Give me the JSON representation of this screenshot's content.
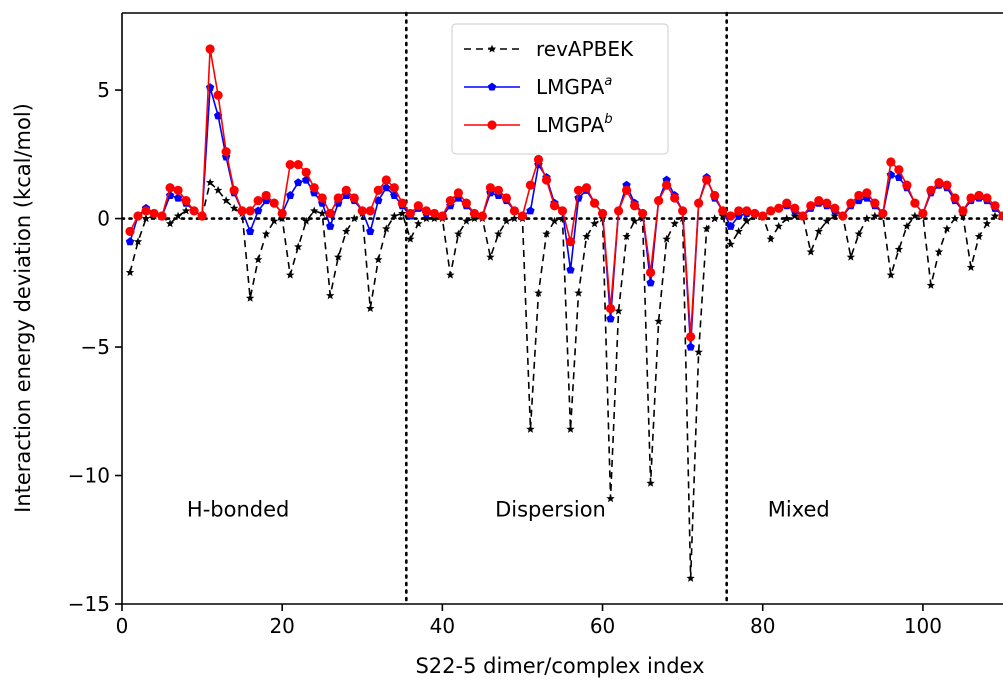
{
  "chart_data": {
    "type": "line",
    "title": "",
    "xlabel": "S22-5 dimer/complex index",
    "ylabel": "Interaction energy deviation (kcal/mol)",
    "xlim": [
      0,
      110
    ],
    "ylim": [
      -15,
      8
    ],
    "x_ticks": [
      0,
      20,
      40,
      60,
      80,
      100
    ],
    "y_ticks": [
      -15,
      -10,
      -5,
      0,
      5
    ],
    "x_tick_labels": [
      "0",
      "20",
      "40",
      "60",
      "80",
      "100"
    ],
    "y_tick_labels": [
      "−15",
      "−10",
      "−5",
      "0",
      "5"
    ],
    "grid": false,
    "legend_position": "top-center",
    "zero_line": {
      "y": 0,
      "style": "dotted",
      "color": "#000000"
    },
    "region_dividers": [
      35.5,
      75.5
    ],
    "region_labels": [
      {
        "text": "H-bonded",
        "x": 14.5,
        "y": -11.6
      },
      {
        "text": "Dispersion",
        "x": 53.5,
        "y": -11.6
      },
      {
        "text": "Mixed",
        "x": 84.5,
        "y": -11.6
      }
    ],
    "series": [
      {
        "name": "revAPBEK",
        "sup": "",
        "color": "#000000",
        "dash": "7,5",
        "marker": "star",
        "x": [
          1,
          2,
          3,
          4,
          5,
          6,
          7,
          8,
          9,
          10,
          11,
          12,
          13,
          14,
          15,
          16,
          17,
          18,
          19,
          20,
          21,
          22,
          23,
          24,
          25,
          26,
          27,
          28,
          29,
          30,
          31,
          32,
          33,
          34,
          35,
          36,
          37,
          38,
          39,
          40,
          41,
          42,
          43,
          44,
          45,
          46,
          47,
          48,
          49,
          50,
          51,
          52,
          53,
          54,
          55,
          56,
          57,
          58,
          59,
          60,
          61,
          62,
          63,
          64,
          65,
          66,
          67,
          68,
          69,
          70,
          71,
          72,
          73,
          74,
          75,
          76,
          77,
          78,
          79,
          80,
          81,
          82,
          83,
          84,
          85,
          86,
          87,
          88,
          89,
          90,
          91,
          92,
          93,
          94,
          95,
          96,
          97,
          98,
          99,
          100,
          101,
          102,
          103,
          104,
          105,
          106,
          107,
          108,
          109,
          110
        ],
        "y": [
          -2.1,
          -0.9,
          0.0,
          0.1,
          0.1,
          -0.2,
          0.1,
          0.3,
          0.3,
          0.1,
          1.4,
          1.1,
          0.7,
          0.4,
          0.2,
          -3.1,
          -1.6,
          -0.6,
          -0.1,
          0.0,
          -2.2,
          -1.1,
          -0.1,
          0.3,
          0.2,
          -3.0,
          -1.5,
          -0.5,
          0.0,
          0.2,
          -3.5,
          -1.6,
          -0.4,
          0.1,
          0.2,
          -0.8,
          -0.2,
          0.0,
          0.0,
          0.0,
          -2.2,
          -0.6,
          -0.1,
          0.0,
          0.0,
          -1.5,
          -0.6,
          -0.1,
          0.0,
          0.0,
          -8.2,
          -2.9,
          -0.6,
          -0.1,
          0.0,
          -8.2,
          -2.9,
          -0.7,
          -0.2,
          0.0,
          -10.9,
          -3.6,
          -0.7,
          -0.1,
          0.0,
          -10.3,
          -4.0,
          -0.8,
          -0.2,
          0.0,
          -14.0,
          -5.2,
          -0.4,
          0.0,
          0.1,
          -1.0,
          -0.5,
          -0.1,
          0.1,
          0.1,
          -0.8,
          -0.3,
          0.0,
          0.1,
          0.1,
          -1.3,
          -0.5,
          -0.1,
          0.1,
          0.1,
          -1.5,
          -0.6,
          0.0,
          0.1,
          0.1,
          -2.2,
          -1.2,
          -0.3,
          0.1,
          0.1,
          -2.6,
          -1.3,
          -0.4,
          0.0,
          0.1,
          -1.9,
          -0.7,
          -0.2,
          0.1,
          0.1
        ]
      },
      {
        "name": "LMGPA",
        "sup": "a",
        "color": "#0000ff",
        "dash": "",
        "marker": "pentagon",
        "x": [
          1,
          2,
          3,
          4,
          5,
          6,
          7,
          8,
          9,
          10,
          11,
          12,
          13,
          14,
          15,
          16,
          17,
          18,
          19,
          20,
          21,
          22,
          23,
          24,
          25,
          26,
          27,
          28,
          29,
          30,
          31,
          32,
          33,
          34,
          35,
          36,
          37,
          38,
          39,
          40,
          41,
          42,
          43,
          44,
          45,
          46,
          47,
          48,
          49,
          50,
          51,
          52,
          53,
          54,
          55,
          56,
          57,
          58,
          59,
          60,
          61,
          62,
          63,
          64,
          65,
          66,
          67,
          68,
          69,
          70,
          71,
          72,
          73,
          74,
          75,
          76,
          77,
          78,
          79,
          80,
          81,
          82,
          83,
          84,
          85,
          86,
          87,
          88,
          89,
          90,
          91,
          92,
          93,
          94,
          95,
          96,
          97,
          98,
          99,
          100,
          101,
          102,
          103,
          104,
          105,
          106,
          107,
          108,
          109,
          110
        ],
        "y": [
          -0.9,
          0.1,
          0.4,
          0.2,
          0.1,
          0.9,
          0.8,
          0.6,
          0.3,
          0.1,
          5.1,
          4.0,
          2.4,
          1.0,
          0.3,
          -0.5,
          0.3,
          0.7,
          0.6,
          0.2,
          0.9,
          1.4,
          1.5,
          1.0,
          0.6,
          -0.3,
          0.6,
          0.9,
          0.7,
          0.3,
          -0.5,
          0.7,
          1.2,
          0.9,
          0.5,
          0.1,
          0.4,
          0.2,
          0.2,
          0.1,
          0.5,
          0.8,
          0.5,
          0.2,
          0.1,
          1.0,
          0.9,
          0.7,
          0.3,
          0.1,
          0.3,
          2.1,
          1.6,
          0.6,
          0.3,
          -2.0,
          0.8,
          1.1,
          0.6,
          0.2,
          -3.9,
          0.3,
          1.3,
          0.6,
          0.2,
          -2.5,
          0.7,
          1.5,
          0.9,
          0.3,
          -5.0,
          0.6,
          1.6,
          0.8,
          0.3,
          -0.3,
          0.1,
          0.2,
          0.2,
          0.1,
          0.3,
          0.4,
          0.5,
          0.3,
          0.1,
          0.4,
          0.6,
          0.5,
          0.3,
          0.1,
          0.5,
          0.7,
          0.8,
          0.5,
          0.2,
          1.7,
          1.6,
          1.2,
          0.6,
          0.2,
          1.0,
          1.3,
          1.2,
          0.7,
          0.3,
          0.7,
          0.8,
          0.7,
          0.4,
          0.1
        ]
      },
      {
        "name": "LMGPA",
        "sup": "b",
        "color": "#ff0000",
        "dash": "",
        "marker": "circle",
        "x": [
          1,
          2,
          3,
          4,
          5,
          6,
          7,
          8,
          9,
          10,
          11,
          12,
          13,
          14,
          15,
          16,
          17,
          18,
          19,
          20,
          21,
          22,
          23,
          24,
          25,
          26,
          27,
          28,
          29,
          30,
          31,
          32,
          33,
          34,
          35,
          36,
          37,
          38,
          39,
          40,
          41,
          42,
          43,
          44,
          45,
          46,
          47,
          48,
          49,
          50,
          51,
          52,
          53,
          54,
          55,
          56,
          57,
          58,
          59,
          60,
          61,
          62,
          63,
          64,
          65,
          66,
          67,
          68,
          69,
          70,
          71,
          72,
          73,
          74,
          75,
          76,
          77,
          78,
          79,
          80,
          81,
          82,
          83,
          84,
          85,
          86,
          87,
          88,
          89,
          90,
          91,
          92,
          93,
          94,
          95,
          96,
          97,
          98,
          99,
          100,
          101,
          102,
          103,
          104,
          105,
          106,
          107,
          108,
          109,
          110
        ],
        "y": [
          -0.5,
          0.1,
          0.3,
          0.2,
          0.1,
          1.2,
          1.1,
          0.7,
          0.3,
          0.1,
          6.6,
          4.8,
          2.6,
          1.1,
          0.3,
          0.3,
          0.7,
          0.9,
          0.6,
          0.2,
          2.1,
          2.1,
          1.8,
          1.2,
          0.8,
          0.2,
          0.8,
          1.1,
          0.8,
          0.3,
          0.3,
          1.1,
          1.5,
          1.2,
          0.6,
          0.2,
          0.5,
          0.3,
          0.2,
          0.1,
          0.7,
          1.0,
          0.6,
          0.2,
          0.1,
          1.2,
          1.1,
          0.8,
          0.3,
          0.1,
          1.3,
          2.3,
          1.5,
          0.5,
          0.3,
          -0.9,
          1.1,
          1.2,
          0.6,
          0.2,
          -3.5,
          0.3,
          1.1,
          0.5,
          0.2,
          -2.1,
          0.7,
          1.3,
          0.8,
          0.3,
          -4.6,
          0.6,
          1.5,
          0.9,
          0.3,
          0.1,
          0.3,
          0.3,
          0.2,
          0.1,
          0.3,
          0.4,
          0.6,
          0.4,
          0.1,
          0.5,
          0.7,
          0.6,
          0.4,
          0.1,
          0.6,
          0.9,
          1.0,
          0.6,
          0.2,
          2.2,
          1.9,
          1.3,
          0.6,
          0.2,
          1.1,
          1.4,
          1.3,
          0.8,
          0.3,
          0.8,
          0.9,
          0.8,
          0.5,
          0.1
        ]
      }
    ]
  }
}
